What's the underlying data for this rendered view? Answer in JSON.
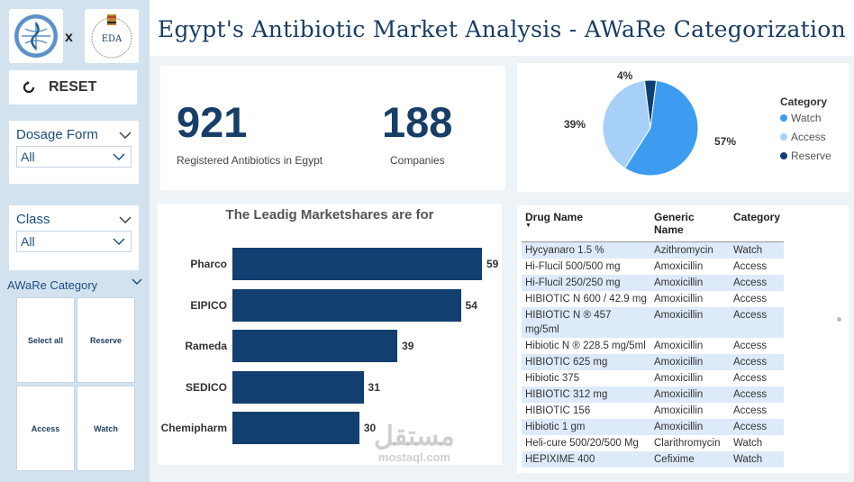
{
  "title": "Egypt's Antibiotic Market Analysis - AWaRe Categorization",
  "logos": {
    "left": "who-logo",
    "separator": "x",
    "right_text": "EDA"
  },
  "reset": {
    "label": "RESET",
    "icon": "refresh-icon"
  },
  "slicers": [
    {
      "title": "Dosage Form",
      "value": "All"
    },
    {
      "title": "Class",
      "value": "All"
    }
  ],
  "aware": {
    "title": "AWaRe Category",
    "tiles": [
      "Select all",
      "Reserve",
      "Access",
      "Watch"
    ]
  },
  "kpis": [
    {
      "value": "921",
      "label": "Registered Antibiotics in Egypt"
    },
    {
      "value": "188",
      "label": "Companies"
    }
  ],
  "bar_chart": {
    "title": "The Leadig Marketshares are for"
  },
  "pie_legend": {
    "title": "Category"
  },
  "colors": {
    "access": "#1f8ef1",
    "watch_light": "#9fcdfa",
    "reserve": "#0b3a6b",
    "bar": "#123f70",
    "title": "#1a3d63"
  },
  "chart_data": [
    {
      "type": "bar",
      "title": "The Leadig Marketshares are for",
      "categories": [
        "Pharco",
        "EIPICO",
        "Rameda",
        "SEDICO",
        "Chemipharm"
      ],
      "values": [
        59,
        54,
        39,
        31,
        30
      ],
      "orientation": "horizontal"
    },
    {
      "type": "pie",
      "legend_title": "Category",
      "labels": [
        "Watch",
        "Access",
        "Reserve"
      ],
      "values": [
        57,
        39,
        4
      ],
      "value_labels": [
        "57%",
        "39%",
        "4%"
      ],
      "colors": [
        "#3d9cf0",
        "#a7d0f8",
        "#0e3f72"
      ],
      "legend_position": "right"
    }
  ],
  "table": {
    "columns": [
      "Drug Name",
      "Generic Name",
      "Category"
    ],
    "rows": [
      [
        "Hycyanaro 1.5 %",
        "Azithromycin",
        "Watch"
      ],
      [
        "Hi-Flucil 500/500 mg",
        "Amoxicillin",
        "Access"
      ],
      [
        "Hi-Flucil 250/250 mg",
        "Amoxicillin",
        "Access"
      ],
      [
        "HIBIOTIC N 600 / 42.9 mg",
        "Amoxicillin",
        "Access"
      ],
      [
        "HIBIOTIC N ® 457 mg/5ml",
        "Amoxicillin",
        "Access"
      ],
      [
        "Hibiotic N ® 228.5 mg/5ml",
        "Amoxicillin",
        "Access"
      ],
      [
        "HIBIOTIC 625 mg",
        "Amoxicillin",
        "Access"
      ],
      [
        "Hibiotic 375",
        "Amoxicillin",
        "Access"
      ],
      [
        "HIBIOTIC 312 mg",
        "Amoxicillin",
        "Access"
      ],
      [
        "HIBIOTIC 156",
        "Amoxicillin",
        "Access"
      ],
      [
        "Hibiotic 1 gm",
        "Amoxicillin",
        "Access"
      ],
      [
        "Heli-cure 500/20/500 Mg",
        "Clarithromycin",
        "Watch"
      ],
      [
        "HEPIXIME 400",
        "Cefixime",
        "Watch"
      ]
    ]
  },
  "watermark": {
    "arabic": "مستقل",
    "latin": "mostaql.com"
  }
}
